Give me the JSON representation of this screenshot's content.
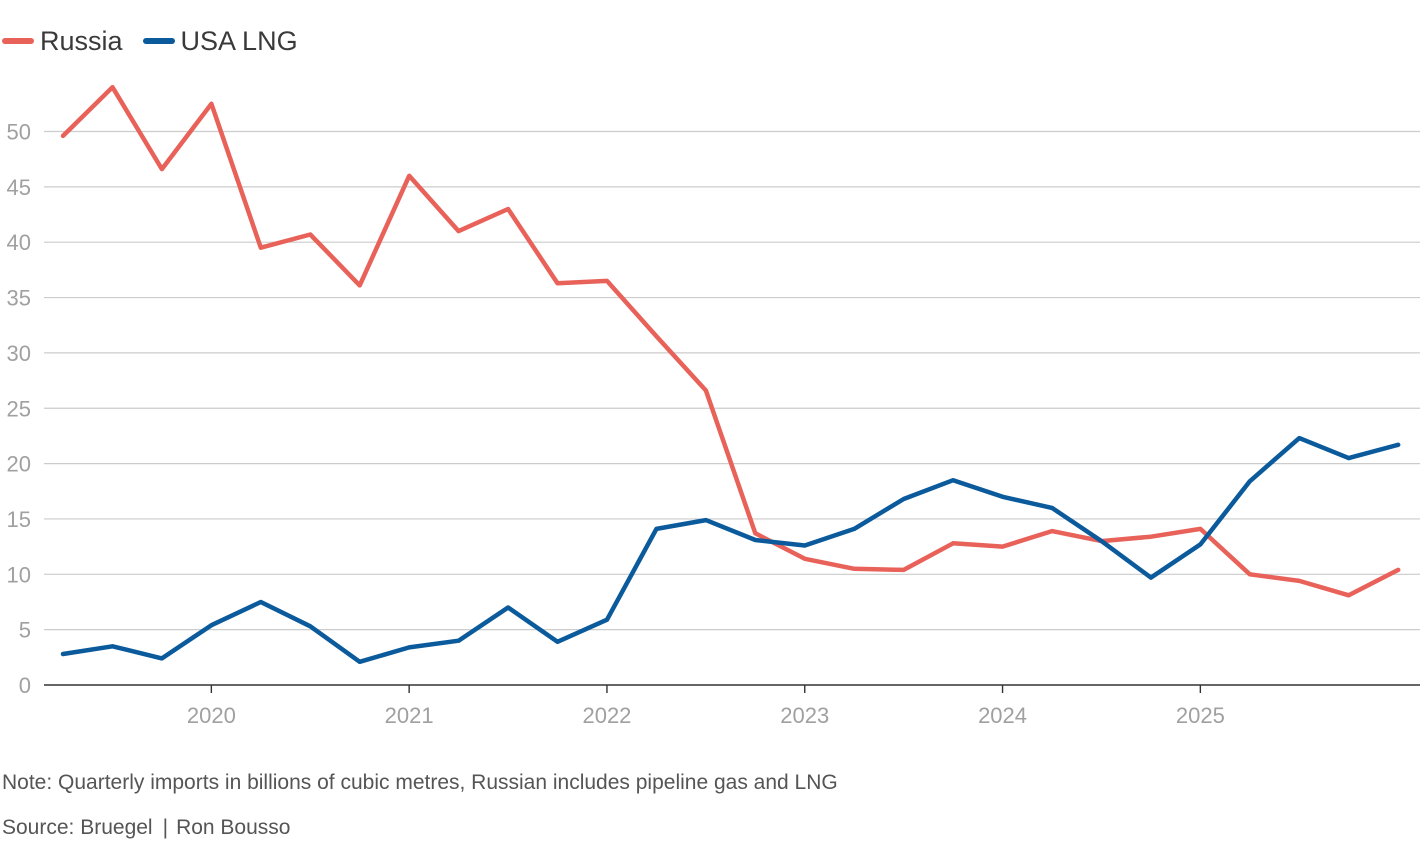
{
  "legend": {
    "russia_label": "Russia",
    "usa_label": "USA LNG"
  },
  "note": "Note: Quarterly imports in billions of cubic metres, Russian includes pipeline gas and LNG",
  "source": {
    "label": "Source: Bruegel",
    "author": "Ron Bousso"
  },
  "colors": {
    "russia": "#e8625a",
    "usa_lng": "#0a5a9c",
    "grid": "#cccccc",
    "axis": "#333333",
    "tick_text": "#a0a0a0"
  },
  "chart_data": {
    "type": "line",
    "title": "",
    "xlabel": "",
    "ylabel": "",
    "ylim": [
      0,
      55
    ],
    "yticks": [
      0,
      5,
      10,
      15,
      20,
      25,
      30,
      35,
      40,
      45,
      50
    ],
    "grid": true,
    "legend_position": "top-left",
    "x": [
      "2019 Q2",
      "2019 Q3",
      "2019 Q4",
      "2020 Q1",
      "2020 Q2",
      "2020 Q3",
      "2020 Q4",
      "2021 Q1",
      "2021 Q2",
      "2021 Q3",
      "2021 Q4",
      "2022 Q1",
      "2022 Q2",
      "2022 Q3",
      "2022 Q4",
      "2023 Q1",
      "2023 Q2",
      "2023 Q3",
      "2023 Q4",
      "2024 Q1",
      "2024 Q2",
      "2024 Q3",
      "2024 Q4",
      "2025 Q1",
      "2025 Q2",
      "2025 Q3",
      "2025 Q4",
      "2026 Q1"
    ],
    "xtick_labels": [
      {
        "label": "2020",
        "at": "2020 Q1"
      },
      {
        "label": "2021",
        "at": "2021 Q1"
      },
      {
        "label": "2022",
        "at": "2022 Q1"
      },
      {
        "label": "2023",
        "at": "2023 Q1"
      },
      {
        "label": "2024",
        "at": "2024 Q1"
      },
      {
        "label": "2025",
        "at": "2025 Q1"
      }
    ],
    "series": [
      {
        "name": "Russia",
        "values": [
          49.6,
          54.0,
          46.6,
          52.5,
          39.5,
          40.7,
          36.1,
          46.0,
          41.0,
          43.0,
          36.3,
          36.5,
          31.5,
          26.6,
          13.7,
          11.4,
          10.5,
          10.4,
          12.8,
          12.5,
          13.9,
          13.0,
          13.4,
          14.1,
          10.0,
          9.4,
          8.1,
          10.4
        ]
      },
      {
        "name": "USA LNG",
        "values": [
          2.8,
          3.5,
          2.4,
          5.4,
          7.5,
          5.3,
          2.1,
          3.4,
          4.0,
          7.0,
          3.9,
          5.9,
          14.1,
          14.9,
          13.1,
          12.6,
          14.1,
          16.8,
          18.5,
          17.0,
          16.0,
          13.0,
          9.7,
          12.7,
          18.4,
          22.3,
          20.5,
          21.7
        ]
      }
    ]
  }
}
